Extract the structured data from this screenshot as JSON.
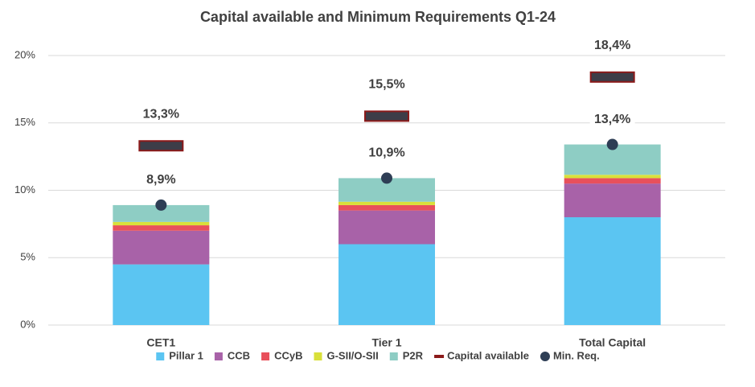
{
  "chart_data": {
    "type": "bar",
    "stacked": true,
    "title": "Capital available and Minimum Requirements Q1-24",
    "categories": [
      "CET1",
      "Tier 1",
      "Total Capital"
    ],
    "series": [
      {
        "name": "Pillar 1",
        "color": "#5bc5f2",
        "values": [
          4.5,
          6,
          8
        ]
      },
      {
        "name": "CCB",
        "color": "#a862a8",
        "values": [
          2.5,
          2.5,
          2.5
        ]
      },
      {
        "name": "CCyB",
        "color": "#e8505b",
        "values": [
          0.4,
          0.4,
          0.4
        ]
      },
      {
        "name": "G-SII/O-SII",
        "color": "#d9e03a",
        "values": [
          0.25,
          0.25,
          0.25
        ]
      },
      {
        "name": "P2R",
        "color": "#8ecdc4",
        "values": [
          1.25,
          1.75,
          2.25
        ]
      }
    ],
    "capital_available": {
      "name": "Capital available",
      "color": "#8b1a1a",
      "values": [
        13.3,
        15.5,
        18.4
      ],
      "value_labels": [
        "13,3%",
        "15,5%",
        "18,4%"
      ]
    },
    "min_req": {
      "name": "Min. Req.",
      "color": "#2e3e55",
      "values": [
        8.9,
        10.9,
        13.4
      ],
      "value_labels": [
        "8,9%",
        "10,9%",
        "13,4%"
      ]
    },
    "ylim": [
      0,
      20
    ],
    "yticks": [
      {
        "value": 0,
        "label": "0%"
      },
      {
        "value": 5,
        "label": "5%"
      },
      {
        "value": 10,
        "label": "10%"
      },
      {
        "value": 15,
        "label": "15%"
      },
      {
        "value": 20,
        "label": "20%"
      }
    ],
    "grid": true
  }
}
